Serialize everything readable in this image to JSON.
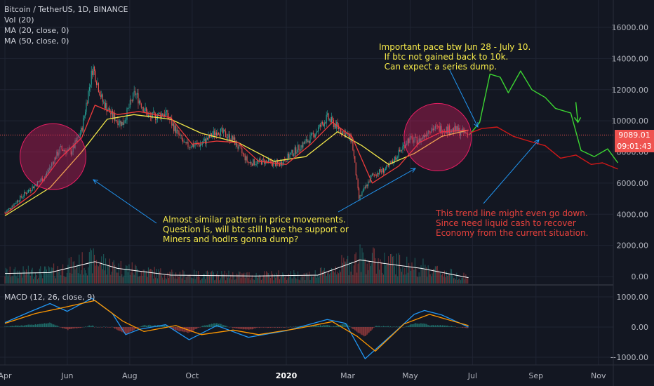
{
  "header": {
    "symbol": "Bitcoin / TetherUS, 1D, BINANCE",
    "vol": "Vol (20)",
    "ma20": "MA (20, close, 0)",
    "ma50": "MA (50, close, 0)",
    "macd": "MACD (12, 26, close, 9)"
  },
  "price_badge": "9089.01",
  "countdown_badge": "09:01:43",
  "annotations": {
    "top_right": "Important pace btw Jun 28 - July 10.\n  If btc not gained back to 10k.\n  Can expect a series dump.",
    "middle": "Almost similar pattern in price movements.\nQuestion is, will btc still have the support or\nMiners and hodlrs gonna dump?",
    "bottom_right": "This trend line might even go down.\nSince need liquid cash to recover\nEconomy from the current situation."
  },
  "colors": {
    "background": "#131722",
    "up": "#26a69a",
    "down": "#ef5350",
    "ma20": "#ef3b3b",
    "ma50": "#f5e94a",
    "macd": "#2196f3",
    "signal": "#ff9800",
    "projection_up": "#3cd632",
    "projection_down": "#d01818",
    "circle": "#e91e63",
    "arrow": "#2196f3"
  },
  "chart_data": {
    "type": "candlestick",
    "x_ticks": [
      "Apr",
      "Jun",
      "Aug",
      "Oct",
      "2020",
      "Mar",
      "May",
      "Jul",
      "Sep",
      "Nov"
    ],
    "price_axis": {
      "ticks": [
        0,
        2000,
        4000,
        6000,
        8000,
        10000,
        12000,
        14000,
        16000
      ],
      "labels": [
        "0.00",
        "2000.00",
        "4000.00",
        "6000.00",
        "8000.00",
        "10000.00",
        "12000.00",
        "14000.00",
        "16000.00"
      ]
    },
    "macd_axis": {
      "ticks": [
        -1000,
        0,
        1000
      ],
      "labels": [
        "−1000.00",
        "0.00",
        "1000.00"
      ]
    },
    "price_path": [
      [
        "2019-04-01",
        4100
      ],
      [
        "2019-04-20",
        5300
      ],
      [
        "2019-05-10",
        6400
      ],
      [
        "2019-05-25",
        8200
      ],
      [
        "2019-06-05",
        8000
      ],
      [
        "2019-06-15",
        9400
      ],
      [
        "2019-06-26",
        13500
      ],
      [
        "2019-07-05",
        11300
      ],
      [
        "2019-07-15",
        10300
      ],
      [
        "2019-07-25",
        9800
      ],
      [
        "2019-08-06",
        11800
      ],
      [
        "2019-08-20",
        10200
      ],
      [
        "2019-09-05",
        10500
      ],
      [
        "2019-09-24",
        8400
      ],
      [
        "2019-10-10",
        8500
      ],
      [
        "2019-10-26",
        9400
      ],
      [
        "2019-11-10",
        8800
      ],
      [
        "2019-11-25",
        7300
      ],
      [
        "2019-12-10",
        7400
      ],
      [
        "2019-12-25",
        7200
      ],
      [
        "2020-01-10",
        8100
      ],
      [
        "2020-01-25",
        8900
      ],
      [
        "2020-02-10",
        10200
      ],
      [
        "2020-02-20",
        9600
      ],
      [
        "2020-03-05",
        8800
      ],
      [
        "2020-03-12",
        5000
      ],
      [
        "2020-03-25",
        6500
      ],
      [
        "2020-04-10",
        7000
      ],
      [
        "2020-04-29",
        8800
      ],
      [
        "2020-05-10",
        8700
      ],
      [
        "2020-05-20",
        9500
      ],
      [
        "2020-06-01",
        9500
      ],
      [
        "2020-06-15",
        9400
      ],
      [
        "2020-06-27",
        9100
      ]
    ],
    "ma20_path": [
      [
        "2019-04-01",
        4000
      ],
      [
        "2019-04-30",
        5400
      ],
      [
        "2019-05-25",
        7600
      ],
      [
        "2019-06-15",
        8900
      ],
      [
        "2019-06-28",
        11000
      ],
      [
        "2019-07-20",
        10400
      ],
      [
        "2019-08-10",
        10600
      ],
      [
        "2019-09-10",
        10200
      ],
      [
        "2019-10-01",
        8500
      ],
      [
        "2019-10-25",
        8700
      ],
      [
        "2019-11-15",
        8600
      ],
      [
        "2019-12-05",
        7400
      ],
      [
        "2020-01-01",
        7200
      ],
      [
        "2020-01-25",
        8500
      ],
      [
        "2020-02-15",
        9900
      ],
      [
        "2020-03-05",
        9000
      ],
      [
        "2020-03-25",
        6000
      ],
      [
        "2020-04-20",
        7100
      ],
      [
        "2020-05-10",
        8600
      ],
      [
        "2020-06-01",
        9300
      ],
      [
        "2020-06-27",
        9400
      ]
    ],
    "ma50_path": [
      [
        "2019-04-01",
        3900
      ],
      [
        "2019-05-15",
        5700
      ],
      [
        "2019-06-15",
        8000
      ],
      [
        "2019-07-10",
        10100
      ],
      [
        "2019-08-05",
        10400
      ],
      [
        "2019-09-10",
        10100
      ],
      [
        "2019-10-10",
        9200
      ],
      [
        "2019-11-15",
        8600
      ],
      [
        "2019-12-20",
        7400
      ],
      [
        "2020-01-20",
        7700
      ],
      [
        "2020-02-20",
        9300
      ],
      [
        "2020-03-15",
        8400
      ],
      [
        "2020-04-10",
        7200
      ],
      [
        "2020-05-05",
        7900
      ],
      [
        "2020-06-01",
        9000
      ],
      [
        "2020-06-27",
        9400
      ]
    ],
    "projection_green": [
      [
        "2020-06-28",
        9100
      ],
      [
        "2020-07-08",
        9900
      ],
      [
        "2020-07-18",
        13000
      ],
      [
        "2020-07-28",
        12800
      ],
      [
        "2020-08-05",
        11800
      ],
      [
        "2020-08-17",
        13200
      ],
      [
        "2020-08-28",
        12000
      ],
      [
        "2020-09-10",
        11500
      ],
      [
        "2020-09-20",
        10800
      ],
      [
        "2020-10-05",
        10500
      ],
      [
        "2020-10-15",
        8100
      ],
      [
        "2020-10-28",
        7700
      ],
      [
        "2020-11-10",
        8200
      ],
      [
        "2020-11-20",
        7300
      ]
    ],
    "projection_red": [
      [
        "2020-06-28",
        9200
      ],
      [
        "2020-07-10",
        9500
      ],
      [
        "2020-07-25",
        9600
      ],
      [
        "2020-08-10",
        9000
      ],
      [
        "2020-08-25",
        8700
      ],
      [
        "2020-09-10",
        8400
      ],
      [
        "2020-09-25",
        7600
      ],
      [
        "2020-10-10",
        7800
      ],
      [
        "2020-10-25",
        7200
      ],
      [
        "2020-11-05",
        7300
      ],
      [
        "2020-11-20",
        6900
      ]
    ],
    "volume_ma": [
      [
        "2019-04-01",
        240
      ],
      [
        "2019-05-15",
        260
      ],
      [
        "2019-06-28",
        520
      ],
      [
        "2019-07-20",
        360
      ],
      [
        "2019-09-10",
        200
      ],
      [
        "2019-12-01",
        180
      ],
      [
        "2020-02-01",
        200
      ],
      [
        "2020-03-13",
        560
      ],
      [
        "2020-04-05",
        480
      ],
      [
        "2020-05-12",
        360
      ],
      [
        "2020-06-27",
        140
      ]
    ],
    "macd_line": [
      [
        "2019-04-01",
        150
      ],
      [
        "2019-04-25",
        500
      ],
      [
        "2019-05-15",
        780
      ],
      [
        "2019-06-01",
        520
      ],
      [
        "2019-06-25",
        950
      ],
      [
        "2019-07-15",
        450
      ],
      [
        "2019-07-28",
        -250
      ],
      [
        "2019-08-10",
        -80
      ],
      [
        "2019-09-05",
        80
      ],
      [
        "2019-09-28",
        -420
      ],
      [
        "2019-10-25",
        50
      ],
      [
        "2019-11-25",
        -340
      ],
      [
        "2020-01-01",
        -120
      ],
      [
        "2020-02-10",
        250
      ],
      [
        "2020-02-28",
        120
      ],
      [
        "2020-03-18",
        -1050
      ],
      [
        "2020-04-15",
        -200
      ],
      [
        "2020-05-05",
        420
      ],
      [
        "2020-05-15",
        550
      ],
      [
        "2020-06-01",
        400
      ],
      [
        "2020-06-27",
        0
      ]
    ],
    "signal_line": [
      [
        "2019-04-01",
        120
      ],
      [
        "2019-05-01",
        450
      ],
      [
        "2019-05-25",
        620
      ],
      [
        "2019-06-28",
        880
      ],
      [
        "2019-07-25",
        200
      ],
      [
        "2019-08-15",
        -150
      ],
      [
        "2019-09-15",
        50
      ],
      [
        "2019-10-10",
        -250
      ],
      [
        "2019-11-10",
        -100
      ],
      [
        "2019-12-05",
        -250
      ],
      [
        "2020-01-10",
        -60
      ],
      [
        "2020-02-15",
        180
      ],
      [
        "2020-03-10",
        -300
      ],
      [
        "2020-03-28",
        -800
      ],
      [
        "2020-04-25",
        100
      ],
      [
        "2020-05-20",
        420
      ],
      [
        "2020-06-27",
        50
      ]
    ]
  }
}
